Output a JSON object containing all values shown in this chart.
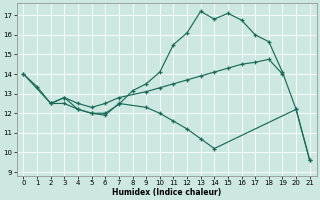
{
  "xlabel": "Humidex (Indice chaleur)",
  "bg_color": "#cce8e0",
  "grid_color": "#b0d8d0",
  "line_color": "#1a6b5a",
  "xlim": [
    -0.5,
    21.5
  ],
  "ylim": [
    8.8,
    17.6
  ],
  "xticks": [
    0,
    1,
    2,
    3,
    4,
    5,
    6,
    7,
    8,
    9,
    10,
    11,
    12,
    13,
    14,
    15,
    16,
    17,
    18,
    19,
    20,
    21
  ],
  "yticks": [
    9,
    10,
    11,
    12,
    13,
    14,
    15,
    16,
    17
  ],
  "main_x": [
    0,
    1,
    2,
    3,
    4,
    5,
    6,
    7,
    8,
    9,
    10,
    11,
    12,
    13,
    14,
    15,
    16,
    17,
    18,
    19,
    20,
    21
  ],
  "main_y": [
    14.0,
    13.35,
    12.5,
    12.8,
    12.2,
    12.0,
    12.0,
    12.45,
    13.15,
    13.5,
    14.1,
    15.5,
    16.1,
    17.2,
    16.8,
    17.1,
    16.75,
    16.0,
    15.65,
    14.1,
    12.2,
    9.6
  ],
  "flat_x": [
    0,
    2,
    3,
    4,
    5,
    6,
    7,
    9,
    10,
    11,
    12,
    13,
    14,
    15,
    16,
    17,
    18,
    19
  ],
  "flat_y": [
    14.0,
    12.5,
    12.8,
    12.5,
    12.3,
    12.5,
    12.8,
    13.1,
    13.3,
    13.5,
    13.7,
    13.9,
    14.1,
    14.3,
    14.5,
    14.6,
    14.75,
    14.0
  ],
  "down_x": [
    2,
    3,
    4,
    5,
    6,
    7,
    9,
    10,
    11,
    12,
    13,
    14,
    20,
    21
  ],
  "down_y": [
    12.5,
    12.5,
    12.2,
    12.0,
    11.9,
    12.5,
    12.3,
    12.0,
    11.6,
    11.2,
    10.7,
    10.2,
    12.2,
    9.6
  ]
}
